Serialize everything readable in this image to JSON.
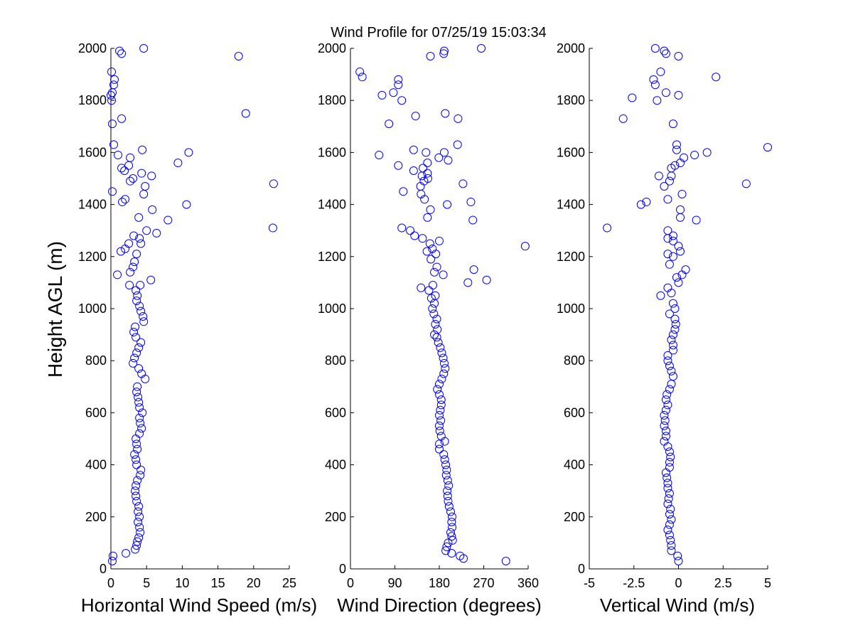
{
  "figure": {
    "title": "Wind Profile for  07/25/19 15:03:34",
    "ylabel": "Height AGL (m)"
  },
  "chart_data": [
    {
      "type": "scatter",
      "name": "horizontal",
      "xlabel": "Horizontal Wind Speed (m/s)",
      "ylabel": "Height AGL (m)",
      "xlim": [
        0,
        25
      ],
      "ylim": [
        0,
        2000
      ],
      "xticks": [
        0,
        5,
        10,
        15,
        20,
        25
      ],
      "xtick_labels": [
        "0",
        "5",
        "10",
        "15",
        "20",
        "25"
      ],
      "yticks": [
        0,
        200,
        400,
        600,
        800,
        1000,
        1200,
        1400,
        1600,
        1800,
        2000
      ],
      "ytick_labels": [
        "0",
        "200",
        "400",
        "600",
        "800",
        "1000",
        "1200",
        "1400",
        "1600",
        "1800",
        "2000"
      ],
      "grid": false,
      "marker": "open circle",
      "color": "#0000ff",
      "points": [
        [
          0.2,
          30
        ],
        [
          0.3,
          50
        ],
        [
          2.1,
          60
        ],
        [
          3.4,
          75
        ],
        [
          3.6,
          90
        ],
        [
          3.7,
          105
        ],
        [
          3.9,
          120
        ],
        [
          4.1,
          140
        ],
        [
          4.0,
          160
        ],
        [
          3.8,
          180
        ],
        [
          4.0,
          200
        ],
        [
          3.8,
          220
        ],
        [
          3.9,
          240
        ],
        [
          3.6,
          260
        ],
        [
          3.5,
          280
        ],
        [
          3.4,
          300
        ],
        [
          3.5,
          320
        ],
        [
          3.7,
          340
        ],
        [
          4.1,
          360
        ],
        [
          4.2,
          380
        ],
        [
          3.6,
          400
        ],
        [
          3.5,
          420
        ],
        [
          3.3,
          440
        ],
        [
          3.7,
          460
        ],
        [
          3.6,
          480
        ],
        [
          3.5,
          500
        ],
        [
          4.0,
          520
        ],
        [
          4.3,
          540
        ],
        [
          4.1,
          560
        ],
        [
          4.0,
          580
        ],
        [
          4.4,
          600
        ],
        [
          4.0,
          620
        ],
        [
          3.9,
          640
        ],
        [
          3.8,
          660
        ],
        [
          3.6,
          680
        ],
        [
          3.7,
          700
        ],
        [
          4.8,
          730
        ],
        [
          4.3,
          750
        ],
        [
          3.9,
          770
        ],
        [
          3.1,
          790
        ],
        [
          3.3,
          810
        ],
        [
          3.6,
          830
        ],
        [
          3.9,
          850
        ],
        [
          4.2,
          870
        ],
        [
          3.5,
          890
        ],
        [
          3.2,
          910
        ],
        [
          3.4,
          930
        ],
        [
          4.6,
          950
        ],
        [
          4.5,
          970
        ],
        [
          4.2,
          990
        ],
        [
          4.0,
          1010
        ],
        [
          3.6,
          1030
        ],
        [
          3.7,
          1050
        ],
        [
          3.5,
          1070
        ],
        [
          4.1,
          1090
        ],
        [
          2.6,
          1090
        ],
        [
          5.6,
          1110
        ],
        [
          0.9,
          1130
        ],
        [
          2.7,
          1140
        ],
        [
          3.1,
          1160
        ],
        [
          3.3,
          1180
        ],
        [
          3.6,
          1210
        ],
        [
          1.4,
          1220
        ],
        [
          2.0,
          1230
        ],
        [
          4.2,
          1250
        ],
        [
          2.5,
          1250
        ],
        [
          4.0,
          1270
        ],
        [
          3.2,
          1280
        ],
        [
          6.4,
          1290
        ],
        [
          5.0,
          1300
        ],
        [
          22.7,
          1310
        ],
        [
          8.0,
          1340
        ],
        [
          3.9,
          1350
        ],
        [
          10.6,
          1400
        ],
        [
          5.8,
          1380
        ],
        [
          1.6,
          1410
        ],
        [
          2.0,
          1420
        ],
        [
          4.6,
          1440
        ],
        [
          0.2,
          1450
        ],
        [
          4.8,
          1470
        ],
        [
          22.8,
          1480
        ],
        [
          2.7,
          1490
        ],
        [
          3.1,
          1500
        ],
        [
          5.7,
          1510
        ],
        [
          4.3,
          1520
        ],
        [
          1.9,
          1530
        ],
        [
          1.5,
          1540
        ],
        [
          2.5,
          1550
        ],
        [
          9.4,
          1560
        ],
        [
          2.7,
          1580
        ],
        [
          1.0,
          1590
        ],
        [
          10.9,
          1600
        ],
        [
          4.4,
          1610
        ],
        [
          0.4,
          1630
        ],
        [
          0.2,
          1710
        ],
        [
          1.5,
          1730
        ],
        [
          18.9,
          1750
        ],
        [
          0.1,
          1800
        ],
        [
          0.0,
          1820
        ],
        [
          0.2,
          1830
        ],
        [
          0.4,
          1860
        ],
        [
          0.5,
          1880
        ],
        [
          0.1,
          1910
        ],
        [
          17.9,
          1970
        ],
        [
          1.5,
          1980
        ],
        [
          1.2,
          1990
        ],
        [
          4.6,
          2000
        ]
      ]
    },
    {
      "type": "scatter",
      "name": "direction",
      "xlabel": "Wind Direction (degrees)",
      "xlim": [
        0,
        360
      ],
      "ylim": [
        0,
        2000
      ],
      "xticks": [
        0,
        90,
        180,
        270,
        360
      ],
      "xtick_labels": [
        "0",
        "90",
        "180",
        "270",
        "360"
      ],
      "yticks": [
        0,
        200,
        400,
        600,
        800,
        1000,
        1200,
        1400,
        1600,
        1800,
        2000
      ],
      "ytick_labels": [
        "0",
        "200",
        "400",
        "600",
        "800",
        "1000",
        "1200",
        "1400",
        "1600",
        "1800",
        "2000"
      ],
      "grid": false,
      "marker": "open circle",
      "color": "#0000ff",
      "points": [
        [
          315,
          30
        ],
        [
          229,
          40
        ],
        [
          222,
          50
        ],
        [
          205,
          60
        ],
        [
          193,
          70
        ],
        [
          195,
          85
        ],
        [
          198,
          100
        ],
        [
          207,
          110
        ],
        [
          205,
          125
        ],
        [
          203,
          140
        ],
        [
          206,
          160
        ],
        [
          205,
          180
        ],
        [
          206,
          200
        ],
        [
          203,
          220
        ],
        [
          200,
          240
        ],
        [
          198,
          260
        ],
        [
          197,
          280
        ],
        [
          196,
          300
        ],
        [
          199,
          320
        ],
        [
          197,
          340
        ],
        [
          194,
          360
        ],
        [
          195,
          380
        ],
        [
          193,
          400
        ],
        [
          191,
          420
        ],
        [
          189,
          440
        ],
        [
          180,
          460
        ],
        [
          180,
          480
        ],
        [
          191,
          490
        ],
        [
          184,
          510
        ],
        [
          181,
          530
        ],
        [
          180,
          550
        ],
        [
          183,
          570
        ],
        [
          180,
          590
        ],
        [
          182,
          610
        ],
        [
          184,
          630
        ],
        [
          184,
          650
        ],
        [
          180,
          670
        ],
        [
          176,
          690
        ],
        [
          180,
          710
        ],
        [
          185,
          730
        ],
        [
          189,
          750
        ],
        [
          192,
          770
        ],
        [
          190,
          790
        ],
        [
          188,
          810
        ],
        [
          185,
          830
        ],
        [
          182,
          850
        ],
        [
          178,
          870
        ],
        [
          175,
          890
        ],
        [
          170,
          900
        ],
        [
          176,
          920
        ],
        [
          172,
          940
        ],
        [
          175,
          960
        ],
        [
          169,
          980
        ],
        [
          166,
          1000
        ],
        [
          170,
          1020
        ],
        [
          164,
          1040
        ],
        [
          172,
          1050
        ],
        [
          159,
          1070
        ],
        [
          143,
          1080
        ],
        [
          167,
          1090
        ],
        [
          276,
          1110
        ],
        [
          238,
          1100
        ],
        [
          250,
          1150
        ],
        [
          188,
          1130
        ],
        [
          170,
          1140
        ],
        [
          175,
          1160
        ],
        [
          163,
          1190
        ],
        [
          173,
          1210
        ],
        [
          155,
          1220
        ],
        [
          166,
          1230
        ],
        [
          161,
          1250
        ],
        [
          354,
          1240
        ],
        [
          180,
          1260
        ],
        [
          130,
          1280
        ],
        [
          146,
          1270
        ],
        [
          121,
          1300
        ],
        [
          104,
          1310
        ],
        [
          156,
          1350
        ],
        [
          248,
          1340
        ],
        [
          162,
          1380
        ],
        [
          196,
          1400
        ],
        [
          244,
          1410
        ],
        [
          150,
          1420
        ],
        [
          143,
          1440
        ],
        [
          107,
          1450
        ],
        [
          142,
          1470
        ],
        [
          228,
          1480
        ],
        [
          149,
          1490
        ],
        [
          157,
          1500
        ],
        [
          145,
          1510
        ],
        [
          156,
          1520
        ],
        [
          128,
          1530
        ],
        [
          147,
          1540
        ],
        [
          97,
          1550
        ],
        [
          156,
          1560
        ],
        [
          198,
          1570
        ],
        [
          179,
          1580
        ],
        [
          58,
          1590
        ],
        [
          153,
          1600
        ],
        [
          190,
          1600
        ],
        [
          128,
          1610
        ],
        [
          217,
          1630
        ],
        [
          78,
          1710
        ],
        [
          218,
          1730
        ],
        [
          132,
          1740
        ],
        [
          192,
          1750
        ],
        [
          104,
          1800
        ],
        [
          64,
          1820
        ],
        [
          87,
          1830
        ],
        [
          97,
          1860
        ],
        [
          97,
          1880
        ],
        [
          19,
          1910
        ],
        [
          24,
          1890
        ],
        [
          162,
          1970
        ],
        [
          189,
          1980
        ],
        [
          190,
          1990
        ],
        [
          265,
          2000
        ]
      ]
    },
    {
      "type": "scatter",
      "name": "vertical",
      "xlabel": "Vertical Wind (m/s)",
      "xlim": [
        -5,
        5
      ],
      "ylim": [
        0,
        2000
      ],
      "xticks": [
        -5,
        -2.5,
        0,
        2.5,
        5
      ],
      "xtick_labels": [
        "-5",
        "-2.5",
        "0",
        "2.5",
        "5"
      ],
      "yticks": [
        0,
        200,
        400,
        600,
        800,
        1000,
        1200,
        1400,
        1600,
        1800,
        2000
      ],
      "ytick_labels": [
        "0",
        "200",
        "400",
        "600",
        "800",
        "1000",
        "1200",
        "1400",
        "1600",
        "1800",
        "2000"
      ],
      "grid": false,
      "marker": "open circle",
      "color": "#0000ff",
      "points": [
        [
          0.0,
          30
        ],
        [
          -0.05,
          50
        ],
        [
          -0.4,
          70
        ],
        [
          -0.4,
          90
        ],
        [
          -0.45,
          110
        ],
        [
          -0.5,
          130
        ],
        [
          -0.6,
          150
        ],
        [
          -0.5,
          170
        ],
        [
          -0.4,
          190
        ],
        [
          -0.5,
          210
        ],
        [
          -0.45,
          230
        ],
        [
          -0.6,
          250
        ],
        [
          -0.55,
          270
        ],
        [
          -0.5,
          290
        ],
        [
          -0.6,
          310
        ],
        [
          -0.6,
          330
        ],
        [
          -0.65,
          350
        ],
        [
          -0.7,
          370
        ],
        [
          -0.5,
          390
        ],
        [
          -0.5,
          410
        ],
        [
          -0.45,
          430
        ],
        [
          -0.5,
          450
        ],
        [
          -0.6,
          470
        ],
        [
          -0.8,
          490
        ],
        [
          -0.7,
          510
        ],
        [
          -0.7,
          530
        ],
        [
          -0.8,
          550
        ],
        [
          -0.75,
          570
        ],
        [
          -0.8,
          590
        ],
        [
          -0.7,
          610
        ],
        [
          -0.6,
          630
        ],
        [
          -0.7,
          650
        ],
        [
          -0.65,
          670
        ],
        [
          -0.5,
          690
        ],
        [
          -0.4,
          710
        ],
        [
          -0.3,
          740
        ],
        [
          -0.4,
          760
        ],
        [
          -0.5,
          780
        ],
        [
          -0.6,
          800
        ],
        [
          -0.6,
          820
        ],
        [
          -0.3,
          840
        ],
        [
          -0.3,
          860
        ],
        [
          -0.4,
          880
        ],
        [
          -0.3,
          900
        ],
        [
          -0.2,
          920
        ],
        [
          -0.15,
          940
        ],
        [
          -0.2,
          960
        ],
        [
          -0.5,
          980
        ],
        [
          -0.2,
          1000
        ],
        [
          -0.3,
          1020
        ],
        [
          -1.0,
          1050
        ],
        [
          -0.4,
          1060
        ],
        [
          -0.6,
          1080
        ],
        [
          0.0,
          1100
        ],
        [
          -0.1,
          1120
        ],
        [
          0.2,
          1130
        ],
        [
          0.4,
          1150
        ],
        [
          -0.5,
          1170
        ],
        [
          -0.3,
          1200
        ],
        [
          0.1,
          1220
        ],
        [
          -0.6,
          1210
        ],
        [
          0.0,
          1240
        ],
        [
          -0.3,
          1260
        ],
        [
          -0.6,
          1270
        ],
        [
          -0.3,
          1280
        ],
        [
          -0.6,
          1300
        ],
        [
          -4.0,
          1310
        ],
        [
          1.0,
          1340
        ],
        [
          0.1,
          1350
        ],
        [
          0.1,
          1380
        ],
        [
          -2.1,
          1400
        ],
        [
          -1.8,
          1410
        ],
        [
          3.8,
          1480
        ],
        [
          -0.6,
          1420
        ],
        [
          0.2,
          1440
        ],
        [
          -0.8,
          1470
        ],
        [
          -0.5,
          1490
        ],
        [
          -0.4,
          1510
        ],
        [
          -1.1,
          1510
        ],
        [
          -0.4,
          1540
        ],
        [
          -0.2,
          1550
        ],
        [
          0.1,
          1560
        ],
        [
          0.3,
          1580
        ],
        [
          0.9,
          1590
        ],
        [
          1.6,
          1600
        ],
        [
          5.0,
          1620
        ],
        [
          -0.1,
          1610
        ],
        [
          -0.1,
          1630
        ],
        [
          -0.3,
          1710
        ],
        [
          -3.1,
          1730
        ],
        [
          -2.6,
          1810
        ],
        [
          -1.2,
          1800
        ],
        [
          -0.7,
          1830
        ],
        [
          0.0,
          1820
        ],
        [
          -1.3,
          1860
        ],
        [
          -1.4,
          1880
        ],
        [
          2.1,
          1890
        ],
        [
          -1.0,
          1910
        ],
        [
          0.0,
          1970
        ],
        [
          -0.7,
          1980
        ],
        [
          -0.8,
          1990
        ],
        [
          -1.3,
          2000
        ]
      ]
    }
  ]
}
